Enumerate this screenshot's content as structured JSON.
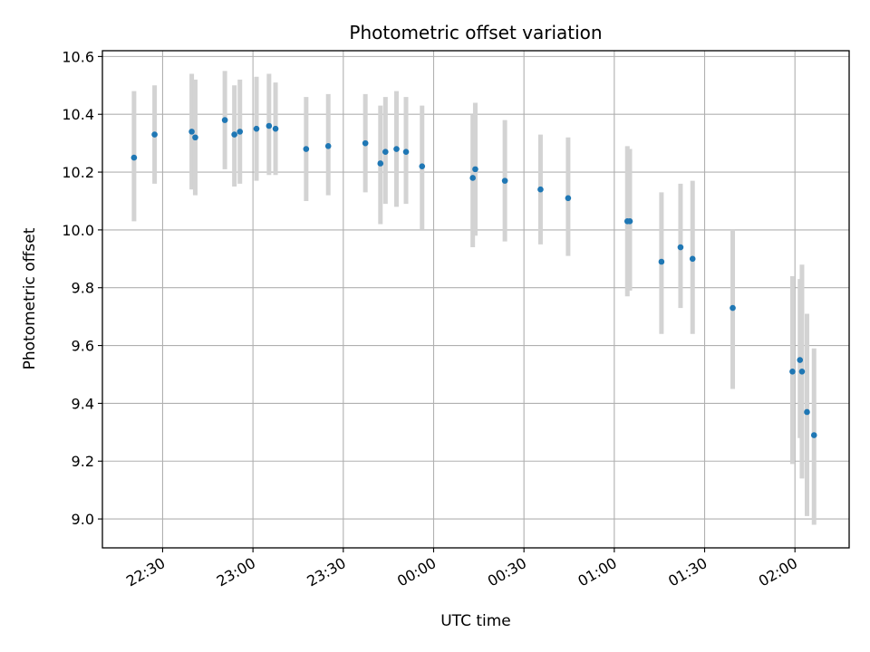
{
  "chart_data": {
    "type": "scatter",
    "title": "Photometric offset variation",
    "xlabel": "UTC time",
    "ylabel": "Photometric offset",
    "x_is_time": true,
    "xlim": [
      "22:10",
      "02:18"
    ],
    "ylim": [
      8.9,
      10.62
    ],
    "x_ticks": [
      "22:30",
      "23:00",
      "23:30",
      "00:00",
      "00:30",
      "01:00",
      "01:30",
      "02:00"
    ],
    "y_ticks": [
      "9.0",
      "9.2",
      "9.4",
      "9.6",
      "9.8",
      "10.0",
      "10.2",
      "10.4",
      "10.6"
    ],
    "grid": true,
    "colors": {
      "points": "#1f77b4",
      "error_bars": "#d3d3d3",
      "grid": "#b0b0b0"
    },
    "points": [
      {
        "x": "22:20:30",
        "y": 10.25,
        "low": 10.03,
        "high": 10.48
      },
      {
        "x": "22:27:20",
        "y": 10.33,
        "low": 10.16,
        "high": 10.5
      },
      {
        "x": "22:39:40",
        "y": 10.34,
        "low": 10.14,
        "high": 10.54
      },
      {
        "x": "22:40:50",
        "y": 10.32,
        "low": 10.12,
        "high": 10.52
      },
      {
        "x": "22:50:40",
        "y": 10.38,
        "low": 10.21,
        "high": 10.55
      },
      {
        "x": "22:53:50",
        "y": 10.33,
        "low": 10.15,
        "high": 10.5
      },
      {
        "x": "22:55:40",
        "y": 10.34,
        "low": 10.16,
        "high": 10.52
      },
      {
        "x": "23:01:10",
        "y": 10.35,
        "low": 10.17,
        "high": 10.53
      },
      {
        "x": "23:05:20",
        "y": 10.36,
        "low": 10.19,
        "high": 10.54
      },
      {
        "x": "23:07:30",
        "y": 10.35,
        "low": 10.19,
        "high": 10.51
      },
      {
        "x": "23:17:40",
        "y": 10.28,
        "low": 10.1,
        "high": 10.46
      },
      {
        "x": "23:25:00",
        "y": 10.29,
        "low": 10.12,
        "high": 10.47
      },
      {
        "x": "23:37:20",
        "y": 10.3,
        "low": 10.13,
        "high": 10.47
      },
      {
        "x": "23:42:20",
        "y": 10.23,
        "low": 10.02,
        "high": 10.43
      },
      {
        "x": "23:44:00",
        "y": 10.27,
        "low": 10.09,
        "high": 10.46
      },
      {
        "x": "23:47:40",
        "y": 10.28,
        "low": 10.08,
        "high": 10.48
      },
      {
        "x": "23:50:50",
        "y": 10.27,
        "low": 10.09,
        "high": 10.46
      },
      {
        "x": "23:56:10",
        "y": 10.22,
        "low": 10.0,
        "high": 10.43
      },
      {
        "x": "00:13:00",
        "y": 10.18,
        "low": 9.94,
        "high": 10.4
      },
      {
        "x": "00:13:50",
        "y": 10.21,
        "low": 9.98,
        "high": 10.44
      },
      {
        "x": "00:23:40",
        "y": 10.17,
        "low": 9.96,
        "high": 10.38
      },
      {
        "x": "00:35:30",
        "y": 10.14,
        "low": 9.95,
        "high": 10.33
      },
      {
        "x": "00:44:40",
        "y": 10.11,
        "low": 9.91,
        "high": 10.32
      },
      {
        "x": "01:04:20",
        "y": 10.03,
        "low": 9.77,
        "high": 10.29
      },
      {
        "x": "01:05:10",
        "y": 10.03,
        "low": 9.79,
        "high": 10.28
      },
      {
        "x": "01:15:40",
        "y": 9.89,
        "low": 9.64,
        "high": 10.13
      },
      {
        "x": "01:22:00",
        "y": 9.94,
        "low": 9.73,
        "high": 10.16
      },
      {
        "x": "01:26:00",
        "y": 9.9,
        "low": 9.64,
        "high": 10.17
      },
      {
        "x": "01:39:20",
        "y": 9.73,
        "low": 9.45,
        "high": 10.0
      },
      {
        "x": "01:59:10",
        "y": 9.51,
        "low": 9.19,
        "high": 9.84
      },
      {
        "x": "02:01:40",
        "y": 9.55,
        "low": 9.28,
        "high": 9.83
      },
      {
        "x": "02:02:20",
        "y": 9.51,
        "low": 9.14,
        "high": 9.88
      },
      {
        "x": "02:04:00",
        "y": 9.37,
        "low": 9.01,
        "high": 9.71
      },
      {
        "x": "02:06:20",
        "y": 9.29,
        "low": 8.98,
        "high": 9.59
      }
    ]
  }
}
